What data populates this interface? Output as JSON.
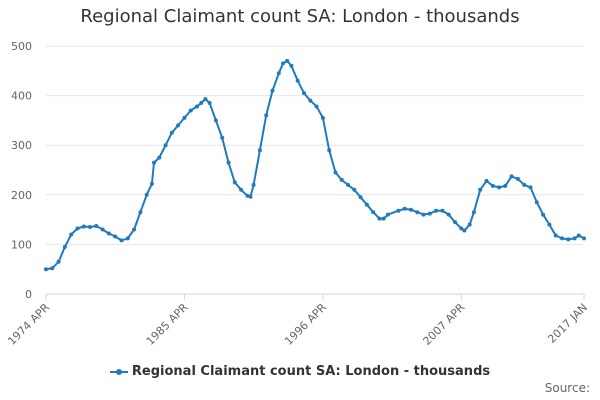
{
  "page": {
    "source_label": "Source:"
  },
  "chart_data": {
    "type": "line",
    "title": "Regional Claimant count SA: London - thousands",
    "xlabel": "",
    "ylabel": "",
    "ylim": [
      0,
      500
    ],
    "yticks": [
      0,
      100,
      200,
      300,
      400,
      500
    ],
    "x_range": [
      "1974-04",
      "2017-01"
    ],
    "xticks": [
      {
        "date": "1974-04",
        "label": "1974 APR"
      },
      {
        "date": "1985-04",
        "label": "1985 APR"
      },
      {
        "date": "1996-04",
        "label": "1996 APR"
      },
      {
        "date": "2007-04",
        "label": "2007 APR"
      },
      {
        "date": "2017-01",
        "label": "2017 JAN"
      }
    ],
    "grid": true,
    "legend_position": "bottom",
    "series": [
      {
        "name": "Regional Claimant count SA: London - thousands",
        "color": "#1f7bbd",
        "points": [
          [
            "1974-04",
            50
          ],
          [
            "1974-10",
            52
          ],
          [
            "1975-04",
            65
          ],
          [
            "1975-10",
            95
          ],
          [
            "1976-04",
            120
          ],
          [
            "1976-10",
            132
          ],
          [
            "1977-04",
            136
          ],
          [
            "1977-10",
            135
          ],
          [
            "1978-04",
            137
          ],
          [
            "1978-10",
            130
          ],
          [
            "1979-04",
            122
          ],
          [
            "1979-10",
            116
          ],
          [
            "1980-04",
            108
          ],
          [
            "1980-10",
            112
          ],
          [
            "1981-04",
            130
          ],
          [
            "1981-10",
            165
          ],
          [
            "1982-04",
            200
          ],
          [
            "1982-09",
            222
          ],
          [
            "1982-11",
            265
          ],
          [
            "1983-04",
            275
          ],
          [
            "1983-10",
            300
          ],
          [
            "1984-04",
            325
          ],
          [
            "1984-10",
            340
          ],
          [
            "1985-04",
            355
          ],
          [
            "1985-10",
            370
          ],
          [
            "1986-04",
            378
          ],
          [
            "1986-08",
            385
          ],
          [
            "1986-12",
            393
          ],
          [
            "1987-04",
            385
          ],
          [
            "1987-10",
            350
          ],
          [
            "1988-04",
            315
          ],
          [
            "1988-10",
            265
          ],
          [
            "1989-04",
            225
          ],
          [
            "1989-10",
            210
          ],
          [
            "1990-04",
            198
          ],
          [
            "1990-07",
            196
          ],
          [
            "1990-10",
            220
          ],
          [
            "1991-04",
            290
          ],
          [
            "1991-10",
            360
          ],
          [
            "1992-04",
            410
          ],
          [
            "1992-10",
            445
          ],
          [
            "1993-02",
            465
          ],
          [
            "1993-06",
            470
          ],
          [
            "1993-10",
            460
          ],
          [
            "1994-04",
            430
          ],
          [
            "1994-10",
            405
          ],
          [
            "1995-04",
            390
          ],
          [
            "1995-10",
            378
          ],
          [
            "1996-04",
            355
          ],
          [
            "1996-10",
            290
          ],
          [
            "1997-04",
            245
          ],
          [
            "1997-10",
            230
          ],
          [
            "1998-04",
            220
          ],
          [
            "1998-10",
            210
          ],
          [
            "1999-04",
            195
          ],
          [
            "1999-10",
            180
          ],
          [
            "2000-04",
            165
          ],
          [
            "2000-10",
            152
          ],
          [
            "2001-02",
            152
          ],
          [
            "2001-06",
            160
          ],
          [
            "2002-04",
            168
          ],
          [
            "2002-10",
            172
          ],
          [
            "2003-04",
            170
          ],
          [
            "2003-10",
            165
          ],
          [
            "2004-04",
            160
          ],
          [
            "2004-10",
            162
          ],
          [
            "2005-04",
            168
          ],
          [
            "2005-10",
            168
          ],
          [
            "2006-04",
            160
          ],
          [
            "2006-10",
            145
          ],
          [
            "2007-04",
            132
          ],
          [
            "2007-07",
            128
          ],
          [
            "2007-12",
            140
          ],
          [
            "2008-04",
            165
          ],
          [
            "2008-10",
            210
          ],
          [
            "2009-04",
            228
          ],
          [
            "2009-10",
            218
          ],
          [
            "2010-04",
            215
          ],
          [
            "2010-10",
            218
          ],
          [
            "2011-04",
            237
          ],
          [
            "2011-10",
            232
          ],
          [
            "2012-04",
            220
          ],
          [
            "2012-10",
            215
          ],
          [
            "2013-04",
            185
          ],
          [
            "2013-10",
            160
          ],
          [
            "2014-04",
            140
          ],
          [
            "2014-10",
            118
          ],
          [
            "2015-04",
            112
          ],
          [
            "2015-10",
            110
          ],
          [
            "2016-04",
            112
          ],
          [
            "2016-08",
            118
          ],
          [
            "2017-01",
            112
          ]
        ]
      }
    ]
  }
}
